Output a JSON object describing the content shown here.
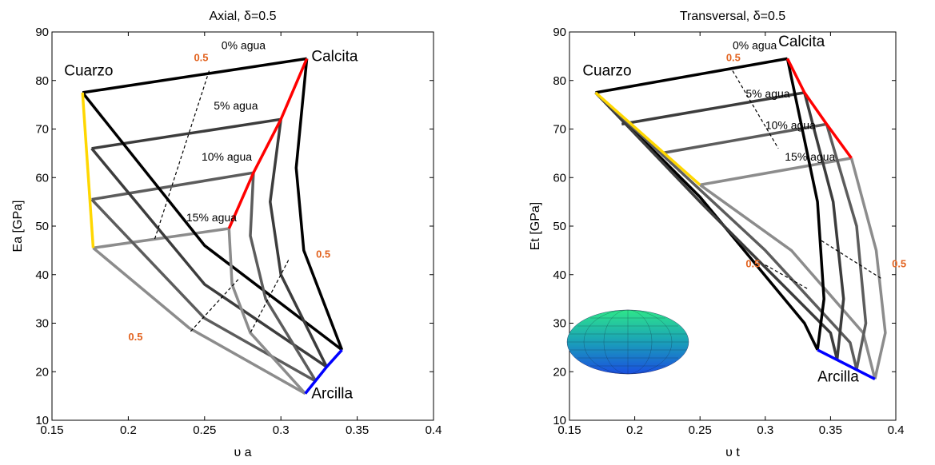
{
  "chart_data": [
    {
      "type": "line",
      "title": "Axial, δ=0.5",
      "xlabel": "υ a",
      "ylabel": "Ea [GPa]",
      "xlim": [
        0.15,
        0.4
      ],
      "ylim": [
        10,
        90
      ],
      "xticks": [
        0.15,
        0.2,
        0.25,
        0.3,
        0.35,
        0.4
      ],
      "yticks": [
        10,
        20,
        30,
        40,
        50,
        60,
        70,
        80,
        90
      ],
      "series": [
        {
          "color": "#000000",
          "x": [
            0.17,
            0.317
          ],
          "values": [
            77.5,
            84.5
          ]
        },
        {
          "color": "#3c3c3c",
          "x": [
            0.176,
            0.3
          ],
          "values": [
            66,
            72
          ]
        },
        {
          "color": "#5c5c5c",
          "x": [
            0.176,
            0.282
          ],
          "values": [
            55.5,
            61
          ]
        },
        {
          "color": "#8c8c8c",
          "x": [
            0.177,
            0.266
          ],
          "values": [
            45.5,
            49.5
          ]
        },
        {
          "color": "#000000",
          "x": [
            0.17,
            0.25,
            0.34
          ],
          "values": [
            77.5,
            46,
            24.5
          ]
        },
        {
          "color": "#3c3c3c",
          "x": [
            0.176,
            0.25,
            0.33
          ],
          "values": [
            66,
            38,
            21
          ]
        },
        {
          "color": "#5c5c5c",
          "x": [
            0.176,
            0.25,
            0.323
          ],
          "values": [
            55.5,
            31,
            18
          ]
        },
        {
          "color": "#8c8c8c",
          "x": [
            0.177,
            0.24,
            0.316
          ],
          "values": [
            45.5,
            29,
            15.5
          ]
        },
        {
          "color": "#000000",
          "x": [
            0.317,
            0.31,
            0.315,
            0.34
          ],
          "values": [
            84.5,
            62,
            45,
            24.5
          ]
        },
        {
          "color": "#3c3c3c",
          "x": [
            0.3,
            0.293,
            0.3,
            0.33
          ],
          "values": [
            72,
            55,
            40,
            21
          ]
        },
        {
          "color": "#5c5c5c",
          "x": [
            0.282,
            0.28,
            0.29,
            0.323
          ],
          "values": [
            61,
            48,
            35,
            18
          ]
        },
        {
          "color": "#8c8c8c",
          "x": [
            0.266,
            0.268,
            0.28,
            0.316
          ],
          "values": [
            49.5,
            38,
            28,
            15.5
          ]
        },
        {
          "color": "#ffd700",
          "x": [
            0.17,
            0.177
          ],
          "values": [
            77.5,
            45.5
          ]
        },
        {
          "color": "#ff0000",
          "x": [
            0.317,
            0.3,
            0.282,
            0.266
          ],
          "values": [
            84.5,
            72,
            61,
            49.5
          ]
        },
        {
          "color": "#0000ff",
          "x": [
            0.34,
            0.33,
            0.316
          ],
          "values": [
            24.5,
            21,
            15.5
          ]
        },
        {
          "color": "#000000",
          "dashed": true,
          "x": [
            0.253,
            0.217
          ],
          "values": [
            82,
            47
          ]
        },
        {
          "color": "#000000",
          "dashed": true,
          "x": [
            0.272,
            0.24
          ],
          "values": [
            39,
            28
          ]
        },
        {
          "color": "#000000",
          "dashed": true,
          "x": [
            0.305,
            0.28
          ],
          "values": [
            43,
            28
          ]
        }
      ],
      "labels": [
        {
          "text": "Cuarzo",
          "x": 0.158,
          "y": 81
        },
        {
          "text": "Calcita",
          "x": 0.32,
          "y": 84
        },
        {
          "text": "Arcilla",
          "x": 0.32,
          "y": 14.5
        }
      ],
      "notes": [
        {
          "text": "0% agua",
          "x": 0.261,
          "y": 86.5
        },
        {
          "text": "5% agua",
          "x": 0.256,
          "y": 74
        },
        {
          "text": "10% agua",
          "x": 0.248,
          "y": 63.5
        },
        {
          "text": "15% agua",
          "x": 0.238,
          "y": 51
        }
      ],
      "markers": [
        {
          "text": "0.5",
          "x": 0.243,
          "y": 84,
          "color": "#e2621e"
        },
        {
          "text": "0.5",
          "x": 0.323,
          "y": 43.5,
          "color": "#e2621e"
        },
        {
          "text": "0.5",
          "x": 0.2,
          "y": 26.5,
          "color": "#e2621e"
        }
      ]
    },
    {
      "type": "line",
      "title": "Transversal, δ=0.5",
      "xlabel": "υ t",
      "ylabel": "Et [GPa]",
      "xlim": [
        0.15,
        0.4
      ],
      "ylim": [
        10,
        90
      ],
      "xticks": [
        0.15,
        0.2,
        0.25,
        0.3,
        0.35,
        0.4
      ],
      "yticks": [
        10,
        20,
        30,
        40,
        50,
        60,
        70,
        80,
        90
      ],
      "series": [
        {
          "color": "#000000",
          "x": [
            0.17,
            0.317
          ],
          "values": [
            77.5,
            84.5
          ]
        },
        {
          "color": "#3c3c3c",
          "x": [
            0.19,
            0.33
          ],
          "values": [
            71,
            77.5
          ]
        },
        {
          "color": "#5c5c5c",
          "x": [
            0.22,
            0.347
          ],
          "values": [
            65,
            71
          ]
        },
        {
          "color": "#8c8c8c",
          "x": [
            0.25,
            0.366
          ],
          "values": [
            58.5,
            64
          ]
        },
        {
          "color": "#000000",
          "x": [
            0.17,
            0.25,
            0.33,
            0.34
          ],
          "values": [
            77.5,
            56,
            30,
            24.5
          ]
        },
        {
          "color": "#3c3c3c",
          "x": [
            0.17,
            0.25,
            0.35,
            0.355
          ],
          "values": [
            77.5,
            55,
            28,
            22.5
          ]
        },
        {
          "color": "#5c5c5c",
          "x": [
            0.17,
            0.3,
            0.365,
            0.37
          ],
          "values": [
            77.5,
            45,
            26,
            20.5
          ]
        },
        {
          "color": "#8c8c8c",
          "x": [
            0.25,
            0.32,
            0.375,
            0.384
          ],
          "values": [
            58.5,
            45,
            28,
            18.5
          ]
        },
        {
          "color": "#000000",
          "x": [
            0.317,
            0.34,
            0.345,
            0.34
          ],
          "values": [
            84.5,
            55,
            35,
            24.5
          ]
        },
        {
          "color": "#3c3c3c",
          "x": [
            0.33,
            0.352,
            0.36,
            0.355
          ],
          "values": [
            77.5,
            55,
            35,
            22.5
          ]
        },
        {
          "color": "#5c5c5c",
          "x": [
            0.347,
            0.37,
            0.377,
            0.37
          ],
          "values": [
            71,
            50,
            30,
            20.5
          ]
        },
        {
          "color": "#8c8c8c",
          "x": [
            0.366,
            0.385,
            0.392,
            0.384
          ],
          "values": [
            64,
            45,
            28,
            18.5
          ]
        },
        {
          "color": "#ffd700",
          "x": [
            0.17,
            0.25
          ],
          "values": [
            77.5,
            58.5
          ]
        },
        {
          "color": "#ff0000",
          "x": [
            0.317,
            0.33,
            0.347,
            0.366
          ],
          "values": [
            84.5,
            77.5,
            71,
            64
          ]
        },
        {
          "color": "#0000ff",
          "x": [
            0.34,
            0.384
          ],
          "values": [
            24.5,
            18.5
          ]
        },
        {
          "color": "#000000",
          "dashed": true,
          "x": [
            0.275,
            0.31
          ],
          "values": [
            82,
            66
          ]
        },
        {
          "color": "#000000",
          "dashed": true,
          "x": [
            0.343,
            0.39
          ],
          "values": [
            47,
            39
          ]
        },
        {
          "color": "#000000",
          "dashed": true,
          "x": [
            0.3,
            0.333
          ],
          "values": [
            42,
            37
          ]
        }
      ],
      "labels": [
        {
          "text": "Cuarzo",
          "x": 0.16,
          "y": 81
        },
        {
          "text": "Calcita",
          "x": 0.31,
          "y": 87
        },
        {
          "text": "Arcilla",
          "x": 0.34,
          "y": 18
        }
      ],
      "notes": [
        {
          "text": "0% agua",
          "x": 0.275,
          "y": 86.5
        },
        {
          "text": "5% agua",
          "x": 0.285,
          "y": 76.5
        },
        {
          "text": "10% agua",
          "x": 0.3,
          "y": 70
        },
        {
          "text": "15% agua",
          "x": 0.315,
          "y": 63.5
        }
      ],
      "markers": [
        {
          "text": "0.5",
          "x": 0.27,
          "y": 84,
          "color": "#e2621e"
        },
        {
          "text": "0.5",
          "x": 0.397,
          "y": 41.5,
          "color": "#e2621e"
        },
        {
          "text": "0.5",
          "x": 0.285,
          "y": 41.5,
          "color": "#e2621e"
        }
      ]
    }
  ]
}
